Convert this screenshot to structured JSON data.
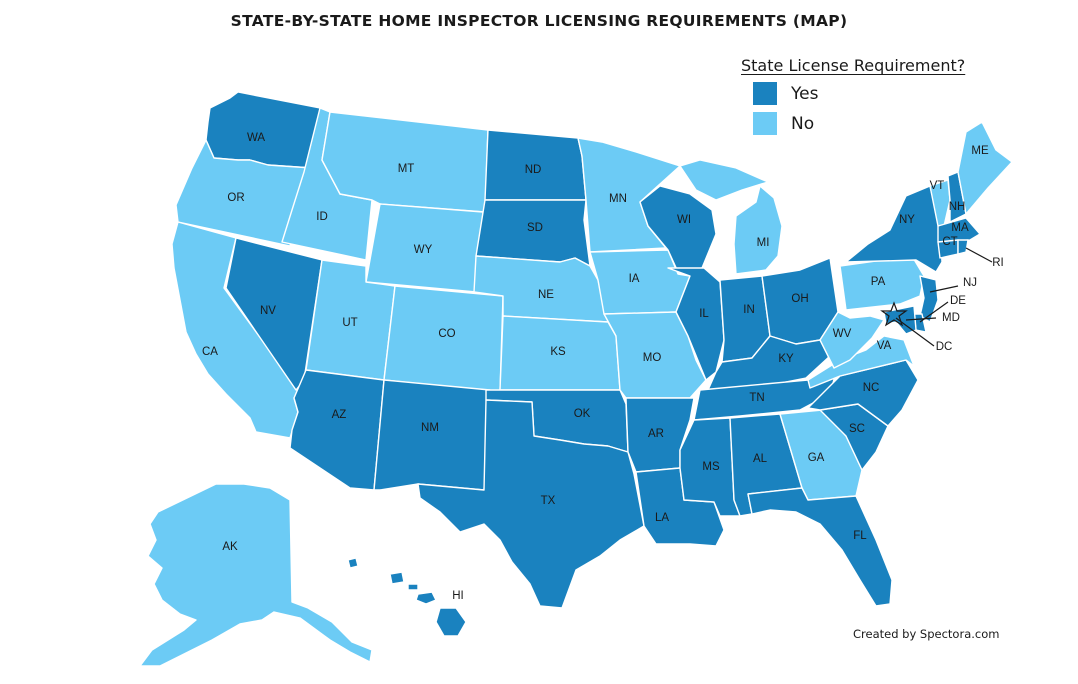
{
  "title": "STATE-BY-STATE HOME INSPECTOR LICENSING REQUIREMENTS (MAP)",
  "legend": {
    "title": "State License Requirement?",
    "items": [
      {
        "label": "Yes",
        "color": "#1a82bf"
      },
      {
        "label": "No",
        "color": "#6ccbf5"
      }
    ]
  },
  "credit": "Created by Spectora.com",
  "states": {
    "WA": "Yes",
    "OR": "No",
    "CA": "No",
    "AK": "No",
    "HI": "Yes",
    "NV": "Yes",
    "ID": "No",
    "MT": "No",
    "WY": "No",
    "UT": "No",
    "CO": "No",
    "AZ": "Yes",
    "NM": "Yes",
    "ND": "Yes",
    "SD": "Yes",
    "NE": "No",
    "KS": "No",
    "OK": "Yes",
    "TX": "Yes",
    "MN": "No",
    "IA": "No",
    "MO": "No",
    "AR": "Yes",
    "LA": "Yes",
    "WI": "Yes",
    "IL": "Yes",
    "MI": "No",
    "IN": "Yes",
    "OH": "Yes",
    "KY": "Yes",
    "TN": "Yes",
    "MS": "Yes",
    "AL": "Yes",
    "GA": "No",
    "FL": "Yes",
    "SC": "Yes",
    "NC": "Yes",
    "VA": "No",
    "WV": "No",
    "PA": "No",
    "NY": "Yes",
    "VT": "No",
    "NH": "Yes",
    "ME": "No",
    "MA": "Yes",
    "CT": "Yes",
    "RI": "Yes",
    "NJ": "Yes",
    "DE": "Yes",
    "MD": "Yes",
    "DC": "Yes"
  }
}
